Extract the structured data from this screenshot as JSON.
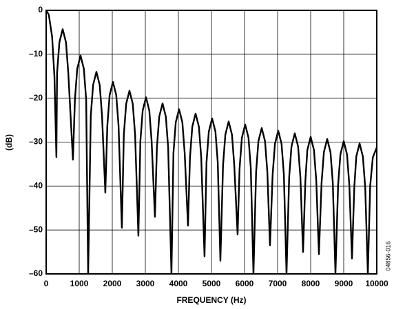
{
  "chart_data": {
    "type": "line",
    "xlabel": "FREQUENCY (Hz)",
    "ylabel": "(dB)",
    "note": "04856-016",
    "grid": true,
    "xlim": [
      0,
      10000
    ],
    "ylim": [
      -60,
      0
    ],
    "xticks": [
      0,
      1000,
      2000,
      3000,
      4000,
      5000,
      6000,
      7000,
      8000,
      9000,
      10000
    ],
    "yticks": [
      {
        "value": -60,
        "label": "–60"
      },
      {
        "value": -50,
        "label": "–50"
      },
      {
        "value": -40,
        "label": "–40"
      },
      {
        "value": -30,
        "label": "–30"
      },
      {
        "value": -20,
        "label": "–20"
      },
      {
        "value": -10,
        "label": "–10"
      },
      0
    ],
    "series": [
      {
        "color": "#000000",
        "x": [
          0,
          80,
          180,
          250,
          310,
          330,
          400,
          500,
          600,
          670,
          810,
          870,
          940,
          1040,
          1140,
          1210,
          1270,
          1350,
          1420,
          1520,
          1620,
          1690,
          1790,
          1850,
          1920,
          2020,
          2120,
          2190,
          2290,
          2350,
          2420,
          2520,
          2620,
          2690,
          2790,
          2850,
          2920,
          3020,
          3120,
          3190,
          3290,
          3350,
          3420,
          3520,
          3620,
          3690,
          3790,
          3850,
          3920,
          4020,
          4120,
          4190,
          4290,
          4350,
          4420,
          4520,
          4620,
          4690,
          4790,
          4850,
          4920,
          5020,
          5120,
          5190,
          5270,
          5350,
          5420,
          5520,
          5620,
          5690,
          5790,
          5850,
          5920,
          6020,
          6120,
          6190,
          6270,
          6350,
          6420,
          6520,
          6620,
          6690,
          6770,
          6850,
          6920,
          7020,
          7120,
          7190,
          7270,
          7350,
          7420,
          7520,
          7620,
          7690,
          7770,
          7840,
          7900,
          8000,
          8100,
          8170,
          8250,
          8330,
          8400,
          8500,
          8600,
          8670,
          8750,
          8830,
          8900,
          9000,
          9100,
          9170,
          9250,
          9320,
          9380,
          9480,
          9580,
          9650,
          9730,
          9800,
          9880,
          10000
        ],
        "values": [
          0,
          -1,
          -6,
          -15,
          -33.4,
          -14.3,
          -7.3,
          -4.3,
          -7.3,
          -14.3,
          -34,
          -20.3,
          -13.3,
          -10.3,
          -13.3,
          -20.3,
          -60,
          -24,
          -17,
          -14,
          -17,
          -24,
          -41.5,
          -26.3,
          -19.3,
          -16.3,
          -19.3,
          -26.3,
          -49.5,
          -28.3,
          -21.3,
          -18.3,
          -21.3,
          -28.3,
          -51.3,
          -29.8,
          -22.8,
          -19.8,
          -22.8,
          -29.8,
          -47,
          -31.2,
          -24.2,
          -21.2,
          -24.2,
          -31.2,
          -60,
          -32.5,
          -25.5,
          -22.5,
          -25.5,
          -32.5,
          -49,
          -33.5,
          -26.5,
          -23.5,
          -26.5,
          -33.5,
          -56,
          -34.6,
          -27.6,
          -24.6,
          -27.6,
          -34.6,
          -57,
          -35.3,
          -28.3,
          -25.3,
          -28.3,
          -35.3,
          -51,
          -36,
          -29,
          -26,
          -29,
          -36,
          -60,
          -36.8,
          -29.8,
          -26.8,
          -29.8,
          -36.8,
          -53.5,
          -37.4,
          -30.4,
          -27.4,
          -30.4,
          -37.4,
          -60,
          -38,
          -31,
          -28,
          -31,
          -38,
          -55,
          -38.8,
          -31.8,
          -28.8,
          -31.8,
          -38.8,
          -55.5,
          -39.3,
          -32.3,
          -29.3,
          -32.3,
          -39.3,
          -60,
          -39.8,
          -32.8,
          -29.8,
          -32.8,
          -39.8,
          -56.5,
          -40.3,
          -33.3,
          -30.3,
          -33.3,
          -40.3,
          -60,
          -40,
          -33.5,
          -31.2
        ]
      }
    ]
  }
}
